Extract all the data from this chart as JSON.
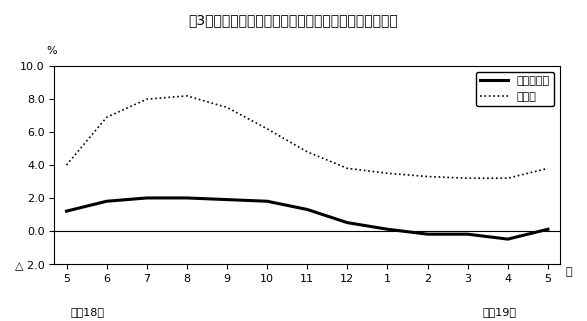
{
  "title": "第3図　常用雇用指数対前年比の推移（規模５人以上）",
  "xlabel_right": "月",
  "ylabel": "%",
  "x_labels": [
    "5",
    "6",
    "7",
    "8",
    "9",
    "10",
    "11",
    "12",
    "1",
    "2",
    "3",
    "4",
    "5"
  ],
  "x_bottom_left": "平成18年",
  "x_bottom_right": "平成19年",
  "ylim": [
    -2.0,
    10.0
  ],
  "ytick_labels": [
    "△ 2.0",
    "0.0",
    "2.0",
    "4.0",
    "6.0",
    "8.0",
    "10.0"
  ],
  "ytick_vals": [
    -2.0,
    0.0,
    2.0,
    4.0,
    6.0,
    8.0,
    10.0
  ],
  "series_solid": {
    "label": "調査産業計",
    "values": [
      1.2,
      1.8,
      2.0,
      2.0,
      1.9,
      1.8,
      1.3,
      0.5,
      0.1,
      -0.2,
      -0.2,
      -0.5,
      0.1
    ]
  },
  "series_dotted": {
    "label": "製造業",
    "values": [
      4.0,
      6.9,
      8.0,
      8.2,
      7.5,
      6.2,
      4.8,
      3.8,
      3.5,
      3.3,
      3.2,
      3.2,
      3.8
    ]
  },
  "background_color": "#ffffff",
  "plot_bg_color": "#ffffff",
  "line_color_solid": "#000000",
  "line_color_dotted": "#000000",
  "zero_line_color": "#000000"
}
